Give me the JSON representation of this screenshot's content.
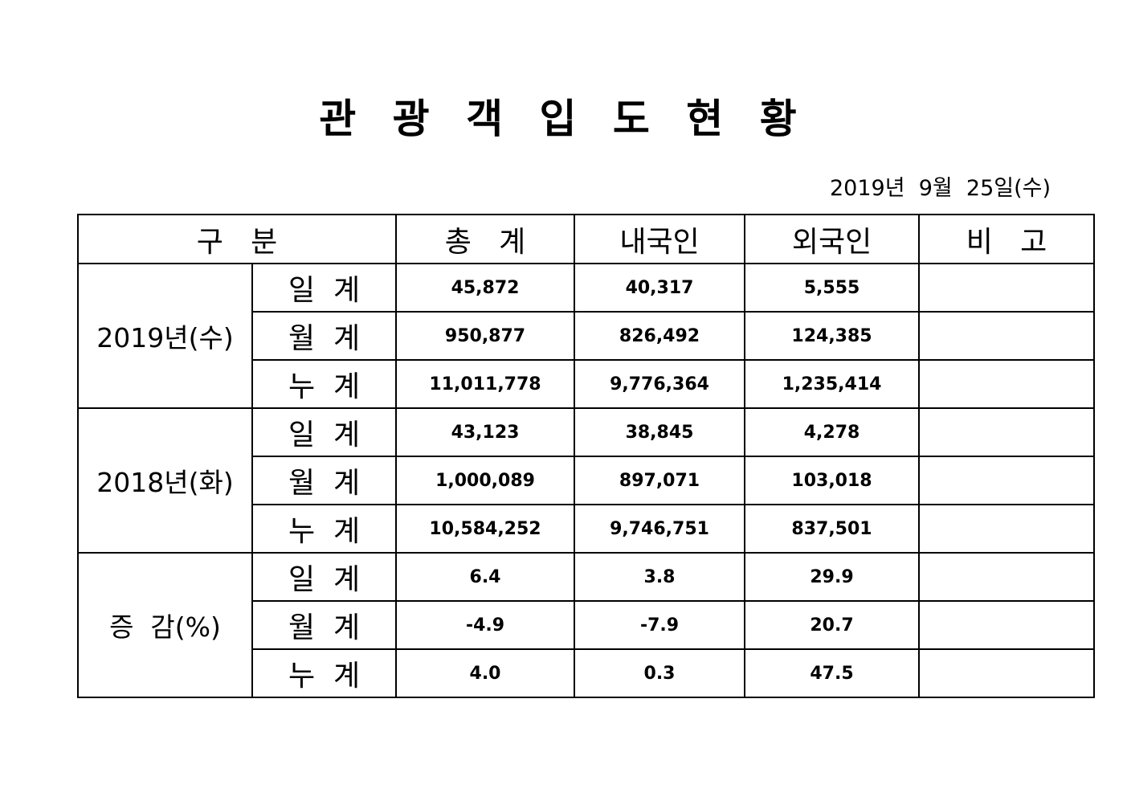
{
  "title": "관 광 객 입 도 현 황",
  "date": "2019년  9월  25일(수)",
  "table": {
    "header": [
      "구   분",
      "총   계",
      "내국인",
      "외국인",
      "비   고"
    ],
    "groups": [
      {
        "label": "2019년(수)",
        "rows": [
          [
            "일  계",
            "45,872",
            "40,317",
            "5,555"
          ],
          [
            "월  계",
            "950,877",
            "826,492",
            "124,385"
          ],
          [
            "누  계",
            "11,011,778",
            "9,776,364",
            "1,235,414"
          ]
        ]
      },
      {
        "label": "2018년(화)",
        "rows": [
          [
            "일  계",
            "43,123",
            "38,845",
            "4,278"
          ],
          [
            "월  계",
            "1,000,089",
            "897,071",
            "103,018"
          ],
          [
            "누  계",
            "10,584,252",
            "9,746,751",
            "837,501"
          ]
        ]
      },
      {
        "label": "증  감(%)",
        "rows": [
          [
            "일  계",
            "6.4",
            "3.8",
            "29.9"
          ],
          [
            "월  계",
            "-4.9",
            "-7.9",
            "20.7"
          ],
          [
            "누  계",
            "4.0",
            "0.3",
            "47.5"
          ]
        ]
      }
    ]
  }
}
